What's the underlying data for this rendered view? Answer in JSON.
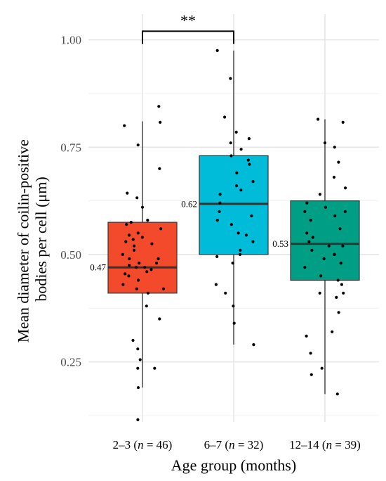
{
  "chart_data": {
    "type": "box",
    "xlabel": "Age group (months)",
    "ylabel": [
      "Mean diameter of coilin-positive",
      "bodies per cell (μm)"
    ],
    "ylim": [
      0.11,
      1.06
    ],
    "yticks": [
      0.25,
      0.5,
      0.75,
      1.0
    ],
    "ytick_labels": [
      "0.25",
      "0.50",
      "0.75",
      "1.00"
    ],
    "grid": true,
    "categories": [
      {
        "name": "2–3",
        "n_label": "n",
        "n_value": " = 46",
        "open": " (",
        "close": ")"
      },
      {
        "name": "6–7",
        "n_label": "n",
        "n_value": " = 32",
        "open": " (",
        "close": ")"
      },
      {
        "name": "12–14",
        "n_label": "n",
        "n_value": " = 39",
        "open": " (",
        "close": ")"
      }
    ],
    "boxes": [
      {
        "color": "#f44a2c",
        "q1": 0.41,
        "median": 0.47,
        "q3": 0.575,
        "whisker_low": 0.19,
        "whisker_high": 0.81,
        "median_label": "0.47",
        "points": [
          0.845,
          0.808,
          0.8,
          0.755,
          0.7,
          0.643,
          0.632,
          0.61,
          0.58,
          0.575,
          0.57,
          0.56,
          0.55,
          0.545,
          0.54,
          0.535,
          0.53,
          0.525,
          0.52,
          0.51,
          0.5,
          0.49,
          0.49,
          0.48,
          0.48,
          0.475,
          0.47,
          0.47,
          0.465,
          0.46,
          0.455,
          0.45,
          0.44,
          0.43,
          0.42,
          0.42,
          0.41,
          0.38,
          0.35,
          0.3,
          0.28,
          0.255,
          0.235,
          0.235,
          0.19,
          0.115
        ]
      },
      {
        "color": "#00bcd8",
        "q1": 0.5,
        "median": 0.618,
        "q3": 0.73,
        "whisker_low": 0.29,
        "whisker_high": 0.975,
        "median_label": "0.62",
        "points": [
          0.975,
          0.91,
          0.82,
          0.785,
          0.77,
          0.76,
          0.745,
          0.73,
          0.72,
          0.71,
          0.69,
          0.67,
          0.66,
          0.65,
          0.64,
          0.62,
          0.6,
          0.59,
          0.58,
          0.57,
          0.55,
          0.545,
          0.53,
          0.51,
          0.5,
          0.495,
          0.48,
          0.43,
          0.41,
          0.38,
          0.34,
          0.29
        ]
      },
      {
        "color": "#009e84",
        "q1": 0.44,
        "median": 0.525,
        "q3": 0.625,
        "whisker_low": 0.175,
        "whisker_high": 0.815,
        "median_label": "0.53",
        "points": [
          0.815,
          0.808,
          0.76,
          0.75,
          0.715,
          0.68,
          0.655,
          0.64,
          0.62,
          0.61,
          0.6,
          0.6,
          0.59,
          0.58,
          0.56,
          0.55,
          0.54,
          0.53,
          0.52,
          0.52,
          0.51,
          0.5,
          0.5,
          0.49,
          0.48,
          0.47,
          0.45,
          0.44,
          0.43,
          0.41,
          0.41,
          0.4,
          0.365,
          0.32,
          0.31,
          0.27,
          0.235,
          0.22,
          0.175
        ]
      }
    ],
    "significance": {
      "from": 0,
      "to": 1,
      "label": "**",
      "y": 1.02
    }
  }
}
